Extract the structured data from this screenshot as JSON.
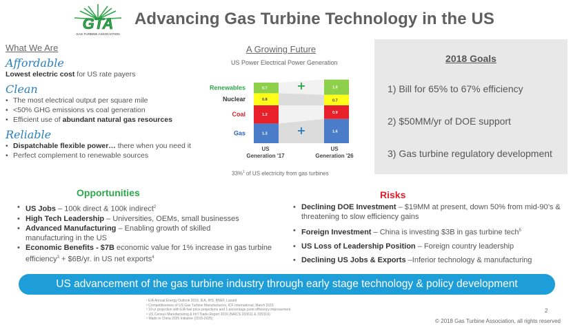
{
  "header": {
    "logo_text": "GTA",
    "logo_subtext": "GAS TURBINE ASSOCIATION",
    "title": "Advancing Gas Turbine Technology in the US"
  },
  "what_we_are": {
    "heading": "What We Are",
    "affordable": {
      "heading": "Affordable",
      "bold": "Lowest electric cost",
      "rest": " for US rate payers"
    },
    "clean": {
      "heading": "Clean",
      "items": [
        {
          "pre": "The most electrical output per square mile",
          "bold": "",
          "post": ""
        },
        {
          "pre": "<50% GHG emissions vs coal generation",
          "bold": "",
          "post": ""
        },
        {
          "pre": "Efficient use of ",
          "bold": "abundant natural gas resources",
          "post": ""
        }
      ]
    },
    "reliable": {
      "heading": "Reliable",
      "items": [
        {
          "pre": "",
          "bold": "Dispatchable flexible power…",
          "post": " there when you need it"
        },
        {
          "pre": "Perfect complement to renewable sources",
          "bold": "",
          "post": ""
        }
      ]
    }
  },
  "chart_data": {
    "type": "bar",
    "title": "A Growing Future",
    "subtitle": "US Power Electrical Power Generation",
    "stacked": true,
    "categories": [
      "US Generation '17",
      "US Generation '26"
    ],
    "series": [
      {
        "name": "Gas",
        "values": [
          1.3,
          1.6
        ],
        "color": "#4a7cc9",
        "label_color": "#2a5fbf"
      },
      {
        "name": "Coal",
        "values": [
          1.2,
          0.9
        ],
        "color": "#e8202a",
        "label_color": "#e0202a"
      },
      {
        "name": "Nuclear",
        "values": [
          0.8,
          0.7
        ],
        "color": "#ffff1a",
        "label_color": "#333333"
      },
      {
        "name": "Renewables",
        "values": [
          0.7,
          1.0
        ],
        "color": "#8ed04a",
        "label_color": "#2ea64a"
      }
    ],
    "growth_markers": [
      "+",
      "+"
    ],
    "marker_color": "#2ea64a",
    "footnote": "33%",
    "footnote_sup": "1",
    "footnote_rest": " of US electricity from gas turbines"
  },
  "goals": {
    "title": "2018 Goals",
    "items": [
      "1) Bill for 65% to 67% efficiency",
      "2) $50MM/yr of DOE support",
      "3) Gas turbine regulatory development"
    ]
  },
  "opportunities": {
    "title": "Opportunities",
    "items": [
      {
        "bold": "US Jobs",
        "text": " – 100k direct & 100k indirect",
        "sup": "2",
        "text2": ""
      },
      {
        "bold": "High Tech Leadership",
        "text": " – Universities, OEMs, small businesses",
        "sup": "",
        "text2": ""
      },
      {
        "bold": "Advanced Manufacturing",
        "text": " – Enabling growth of skilled manufacturing in the US",
        "sup": "",
        "text2": ""
      },
      {
        "bold": "Economic Benefits - $7B",
        "text": " economic value for 1% increase in gas turbine efficiency",
        "sup": "3",
        "text2": " + $6B/yr. in US net exports",
        "sup2": "4"
      }
    ]
  },
  "risks": {
    "title": "Risks",
    "items": [
      {
        "bold": "Declining DOE Investment",
        "text": " – $19MM at present, down 50% from mid-90’s & threatening to slow efficiency gains",
        "sup": ""
      },
      {
        "bold": "Foreign Investment",
        "text": " – China is investing $3B in gas turbine tech",
        "sup": "5"
      },
      {
        "bold": "US Loss of Leadership Position",
        "text": " – Foreign country leadership",
        "sup": ""
      },
      {
        "bold": "Declining US Jobs & Exports",
        "text": " –Inferior technology & manufacturing",
        "sup": ""
      }
    ]
  },
  "banner": {
    "text": "US advancement of the gas turbine industry through early stage technology & policy development"
  },
  "references": [
    "¹ EIA Annual Energy Outlook 2016, IEA, IHS, BNEF, Lazard",
    "² Competitiveness of US Gas Turbine Manufacturers, ICF International, March 2015",
    "³ 10-yr projection with EIA fuel price projections and 1 percentage point efficiency improvement",
    "⁴ US Census Manufacturing & Int’l Trade Report 2016 (NAICS 333611 & 33531X)",
    "⁵ Made in China 2025 Initiative (2015-2025)"
  ],
  "footer": {
    "page_number": "2",
    "copyright": "© 2018 Gas Turbine Association, all rights reserved"
  }
}
